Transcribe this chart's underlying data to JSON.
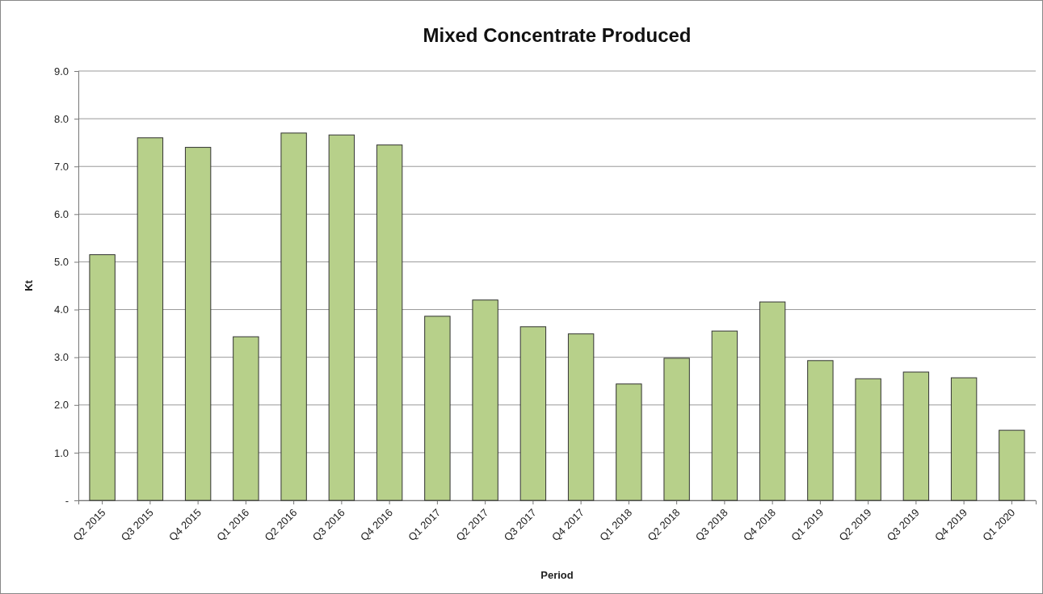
{
  "chart_data": {
    "type": "bar",
    "title": "Mixed Concentrate Produced",
    "xlabel": "Period",
    "ylabel": "Kt",
    "categories": [
      "Q2 2015",
      "Q3 2015",
      "Q4 2015",
      "Q1 2016",
      "Q2 2016",
      "Q3 2016",
      "Q4 2016",
      "Q1 2017",
      "Q2 2017",
      "Q3 2017",
      "Q4 2017",
      "Q1 2018",
      "Q2 2018",
      "Q3 2018",
      "Q4 2018",
      "Q1 2019",
      "Q2 2019",
      "Q3 2019",
      "Q4 2019",
      "Q1 2020"
    ],
    "values": [
      5.15,
      7.6,
      7.4,
      3.43,
      7.7,
      7.66,
      7.45,
      3.86,
      4.2,
      3.64,
      3.49,
      2.44,
      2.98,
      3.55,
      4.16,
      2.93,
      2.55,
      2.69,
      2.57,
      1.47
    ],
    "color": "#b7d08a",
    "ylim": [
      0,
      9
    ],
    "yticks": [
      {
        "value": 0,
        "label": "-"
      },
      {
        "value": 1,
        "label": "1.0"
      },
      {
        "value": 2,
        "label": "2.0"
      },
      {
        "value": 3,
        "label": "3.0"
      },
      {
        "value": 4,
        "label": "4.0"
      },
      {
        "value": 5,
        "label": "5.0"
      },
      {
        "value": 6,
        "label": "6.0"
      },
      {
        "value": 7,
        "label": "7.0"
      },
      {
        "value": 8,
        "label": "8.0"
      },
      {
        "value": 9,
        "label": "9.0"
      }
    ],
    "grid": "y"
  }
}
